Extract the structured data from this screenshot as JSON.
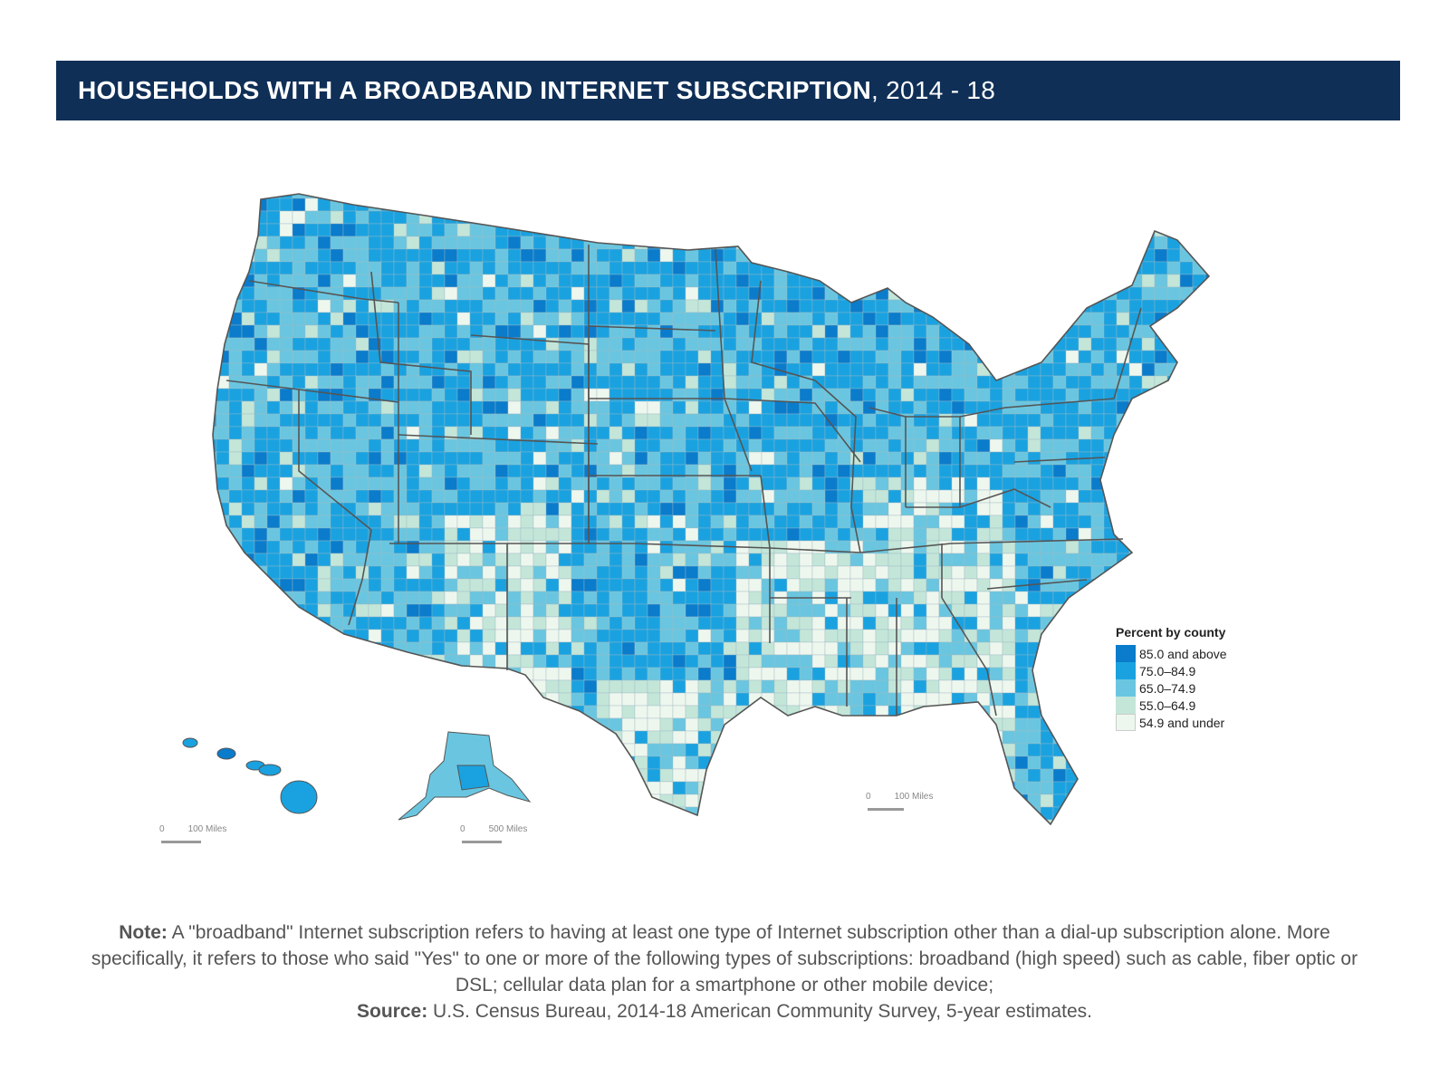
{
  "title": {
    "main": "HOUSEHOLDS WITH A BROADBAND INTERNET SUBSCRIPTION",
    "years": ", 2014 - 18"
  },
  "legend": {
    "title": "Percent by county",
    "items": [
      {
        "label": "85.0 and above",
        "color": "#0a7ccb"
      },
      {
        "label": "75.0–84.9",
        "color": "#1aa2e0"
      },
      {
        "label": "65.0–74.9",
        "color": "#6ac6e0"
      },
      {
        "label": "55.0–64.9",
        "color": "#c3e6d9"
      },
      {
        "label": "54.9 and under",
        "color": "#eef7ee"
      }
    ]
  },
  "scales": {
    "hawaii": {
      "zero": "0",
      "dist": "100 Miles"
    },
    "alaska": {
      "zero": "0",
      "dist": "500 Miles"
    },
    "mainland": {
      "zero": "0",
      "dist": "100 Miles"
    }
  },
  "note": {
    "note_label": "Note:",
    "note_text": " A \"broadband\" Internet subscription refers to having at least one type of Internet subscription other than a dial-up subscription alone. More specifically, it refers to those who said \"Yes\" to one or more of the following types of subscriptions: broadband (high speed) such as cable, fiber optic or DSL; cellular data plan for a smartphone or other mobile device;",
    "source_label": "Source:",
    "source_text": " U.S. Census Bureau, 2014-18 American Community Survey, 5-year estimates."
  },
  "colors": {
    "title_bg": "#0f2f57",
    "state_border": "#555555"
  }
}
